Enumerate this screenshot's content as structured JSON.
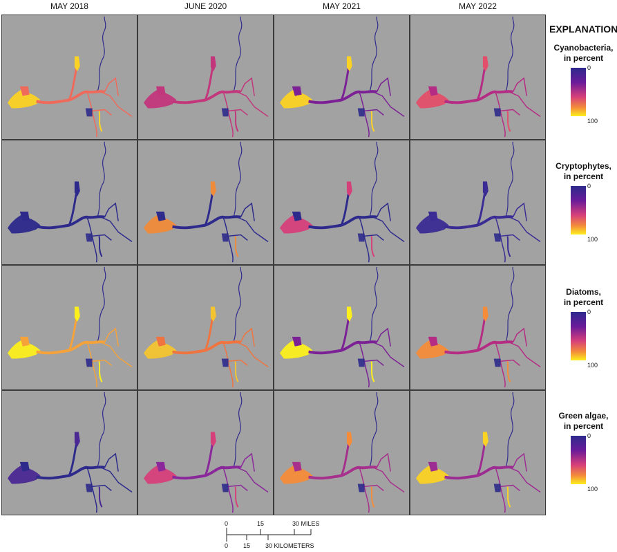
{
  "columns": [
    "MAY 2018",
    "JUNE 2020",
    "MAY 2021",
    "MAY 2022"
  ],
  "explanation_title": "EXPLANATION",
  "legends": [
    {
      "title_line1": "Cyanobacteria,",
      "title_line2": "in percent",
      "min": "0",
      "max": "100"
    },
    {
      "title_line1": "Cryptophytes,",
      "title_line2": "in percent",
      "min": "0",
      "max": "100"
    },
    {
      "title_line1": "Diatoms,",
      "title_line2": "in percent",
      "min": "0",
      "max": "100"
    },
    {
      "title_line1": "Green algae,",
      "title_line2": "in percent",
      "min": "0",
      "max": "100"
    }
  ],
  "scale": {
    "miles_ticks": [
      "0",
      "15",
      "30 MILES"
    ],
    "km_ticks": [
      "0",
      "15",
      "30 KILOMETERS"
    ]
  },
  "colors": {
    "background": "#a2a2a2",
    "low": "#2d2a8c",
    "mid": "#d6407a",
    "high": "#fcef1c"
  },
  "panels": [
    [
      "#ef6a5a",
      "#c2377c",
      "#7b2195",
      "#b52c84"
    ],
    [
      "#2d2a8c",
      "#2d2a8c",
      "#2d2a8c",
      "#3a2c94"
    ],
    [
      "#f6a23a",
      "#f0743f",
      "#7b2195",
      "#b52c84"
    ],
    [
      "#2d2a8c",
      "#8a279a",
      "#a6308c",
      "#9d2c92"
    ]
  ],
  "panel_accents": [
    [
      "#fcd225",
      "#c2377c",
      "#fcd225",
      "#e34f6a"
    ],
    [
      "#2d2a8c",
      "#f08b3a",
      "#d6407a",
      "#3a2c94"
    ],
    [
      "#fcef1c",
      "#f4c430",
      "#fcef1c",
      "#f48c3a"
    ],
    [
      "#4b2994",
      "#d6407a",
      "#f48c3a",
      "#fcd225"
    ]
  ]
}
